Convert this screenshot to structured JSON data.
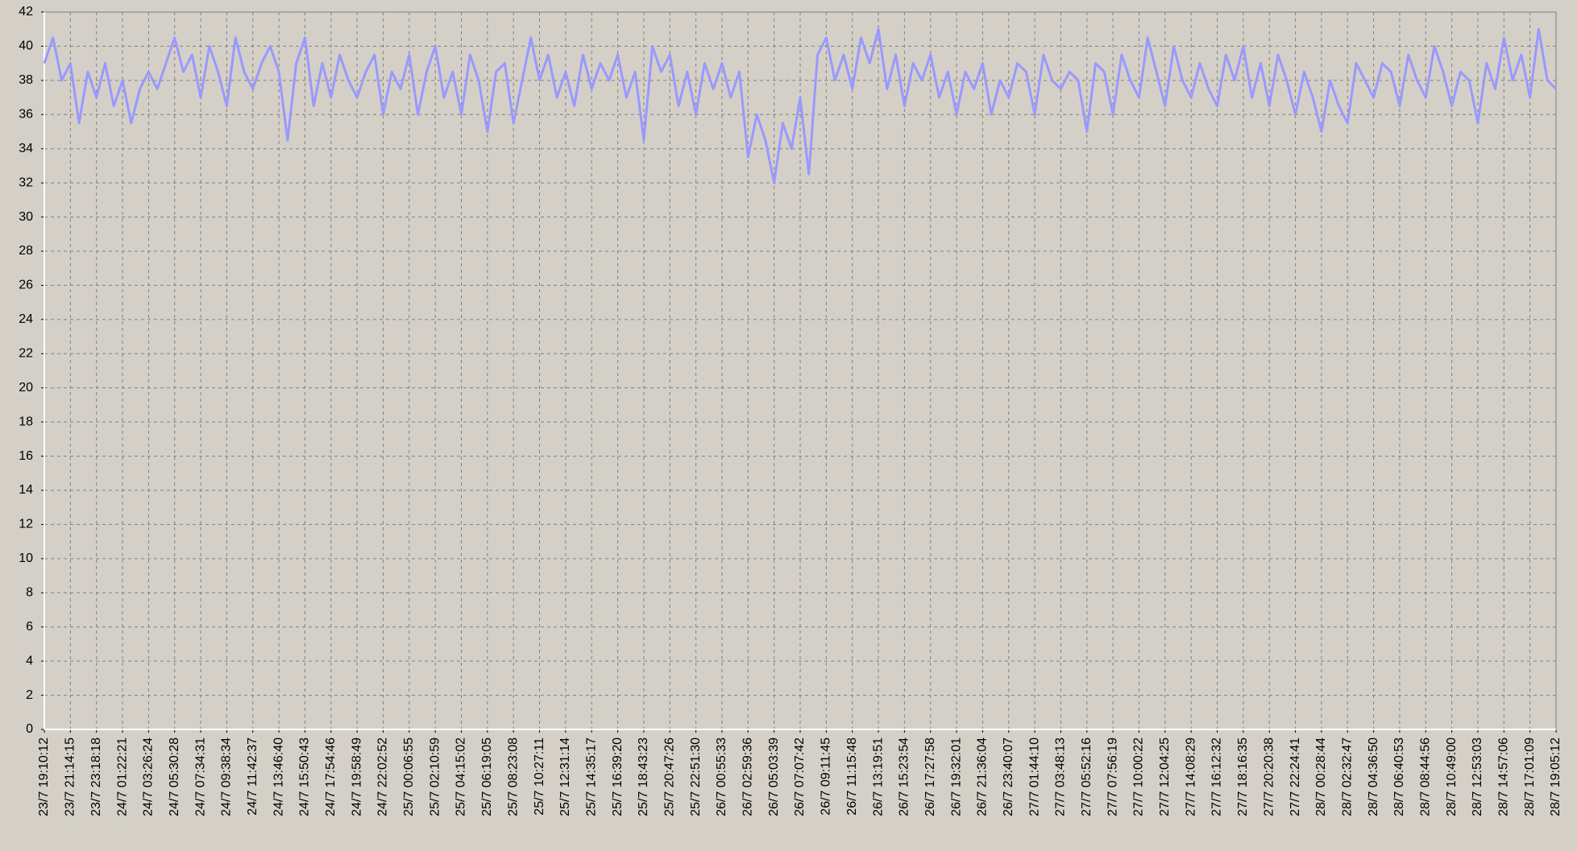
{
  "chart_data": {
    "type": "line",
    "categories": [
      "23/7 19:10:12",
      null,
      null,
      "23/7 21:14:15",
      null,
      null,
      "23/7 23:18:18",
      null,
      null,
      "24/7 01:22:21",
      null,
      null,
      "24/7 03:26:24",
      null,
      null,
      "24/7 05:30:28",
      null,
      null,
      "24/7 07:34:31",
      null,
      null,
      "24/7 09:38:34",
      null,
      null,
      "24/7 11:42:37",
      null,
      null,
      "24/7 13:46:40",
      null,
      null,
      "24/7 15:50:43",
      null,
      null,
      "24/7 17:54:46",
      null,
      null,
      "24/7 19:58:49",
      null,
      null,
      "24/7 22:02:52",
      null,
      null,
      "25/7 00:06:55",
      null,
      null,
      "25/7 02:10:59",
      null,
      null,
      "25/7 04:15:02",
      null,
      null,
      "25/7 06:19:05",
      null,
      null,
      "25/7 08:23:08",
      null,
      null,
      "25/7 10:27:11",
      null,
      null,
      "25/7 12:31:14",
      null,
      null,
      "25/7 14:35:17",
      null,
      null,
      "25/7 16:39:20",
      null,
      null,
      "25/7 18:43:23",
      null,
      null,
      "25/7 20:47:26",
      null,
      null,
      "25/7 22:51:30",
      null,
      null,
      "26/7 00:55:33",
      null,
      null,
      "26/7 02:59:36",
      null,
      null,
      "26/7 05:03:39",
      null,
      null,
      "26/7 07:07:42",
      null,
      null,
      "26/7 09:11:45",
      null,
      null,
      "26/7 11:15:48",
      null,
      null,
      "26/7 13:19:51",
      null,
      null,
      "26/7 15:23:54",
      null,
      null,
      "26/7 17:27:58",
      null,
      null,
      "26/7 19:32:01",
      null,
      null,
      "26/7 21:36:04",
      null,
      null,
      "26/7 23:40:07",
      null,
      null,
      "27/7 01:44:10",
      null,
      null,
      "27/7 03:48:13",
      null,
      null,
      "27/7 05:52:16",
      null,
      null,
      "27/7 07:56:19",
      null,
      null,
      "27/7 10:00:22",
      null,
      null,
      "27/7 12:04:25",
      null,
      null,
      "27/7 14:08:29",
      null,
      null,
      "27/7 16:12:32",
      null,
      null,
      "27/7 18:16:35",
      null,
      null,
      "27/7 20:20:38",
      null,
      null,
      "27/7 22:24:41",
      null,
      null,
      "28/7 00:28:44",
      null,
      null,
      "28/7 02:32:47",
      null,
      null,
      "28/7 04:36:50",
      null,
      null,
      "28/7 06:40:53",
      null,
      null,
      "28/7 08:44:56",
      null,
      null,
      "28/7 10:49:00",
      null,
      null,
      "28/7 12:53:03",
      null,
      null,
      "28/7 14:57:06",
      null,
      null,
      "28/7 17:01:09",
      null,
      null,
      "28/7 19:05:12"
    ],
    "values": [
      39,
      40.5,
      38,
      39,
      35.5,
      38.5,
      37,
      39,
      36.5,
      38,
      35.5,
      37.5,
      38.5,
      37.5,
      39,
      40.5,
      38.5,
      39.5,
      37,
      40,
      38.5,
      36.5,
      40.5,
      38.5,
      37.5,
      39,
      40,
      38.5,
      34.5,
      39,
      40.5,
      36.5,
      39,
      37,
      39.5,
      38,
      37,
      38.5,
      39.5,
      36,
      38.5,
      37.5,
      39.5,
      36,
      38.5,
      40,
      37,
      38.5,
      36,
      39.5,
      38,
      35,
      38.5,
      39,
      35.5,
      38,
      40.5,
      38,
      39.5,
      37,
      38.5,
      36.5,
      39.5,
      37.5,
      39,
      38,
      39.5,
      37,
      38.5,
      34.5,
      40,
      38.5,
      39.5,
      36.5,
      38.5,
      36,
      39,
      37.5,
      39,
      37,
      38.5,
      33.5,
      36,
      34.5,
      32,
      35.5,
      34,
      37,
      32.5,
      39.5,
      40.5,
      38,
      39.5,
      37.5,
      40.5,
      39,
      41,
      37.5,
      39.5,
      36.5,
      39,
      38,
      39.5,
      37,
      38.5,
      36,
      38.5,
      37.5,
      39,
      36,
      38,
      37,
      39,
      38.5,
      36,
      39.5,
      38,
      37.5,
      38.5,
      38,
      35,
      39,
      38.5,
      36,
      39.5,
      38,
      37,
      40.5,
      38.5,
      36.5,
      40,
      38,
      37,
      39,
      37.5,
      36.5,
      39.5,
      38,
      40,
      37,
      39,
      36.5,
      39.5,
      38,
      36,
      38.5,
      37,
      35,
      38,
      36.5,
      35.5,
      39,
      38,
      37,
      39,
      38.5,
      36.5,
      39.5,
      38,
      37,
      40,
      38.5,
      36.5,
      38.5,
      38,
      35.5,
      39,
      37.5,
      40.5,
      38,
      39.5,
      37,
      41,
      38,
      37.5
    ],
    "color": "#9999ff",
    "ylim": [
      0,
      42
    ],
    "yticks": [
      0,
      2,
      4,
      6,
      8,
      10,
      12,
      14,
      16,
      18,
      20,
      22,
      24,
      26,
      28,
      30,
      32,
      34,
      36,
      38,
      40,
      42
    ],
    "grid": true
  }
}
